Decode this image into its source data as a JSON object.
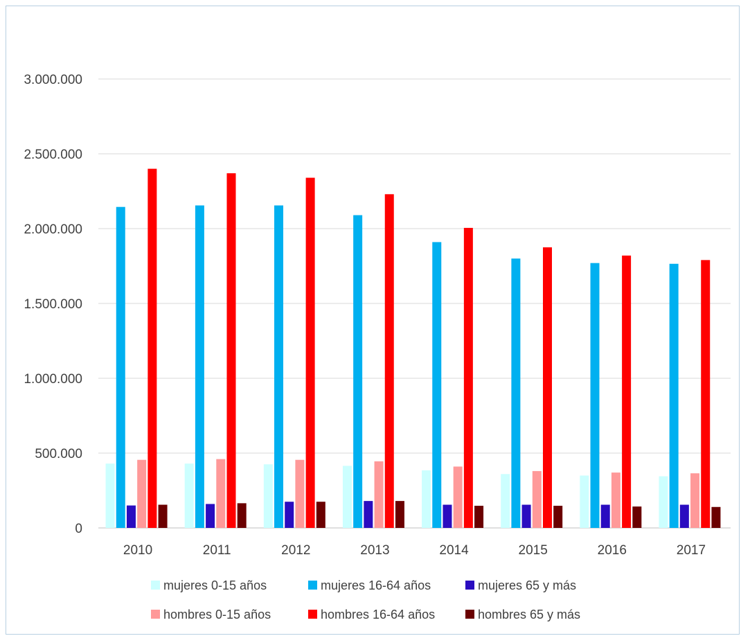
{
  "chart_data": {
    "type": "bar",
    "title": "",
    "xlabel": "",
    "ylabel": "",
    "categories": [
      "2010",
      "2011",
      "2012",
      "2013",
      "2014",
      "2015",
      "2016",
      "2017"
    ],
    "ylim": [
      0,
      3000000
    ],
    "yticks": [
      0,
      500000,
      1000000,
      1500000,
      2000000,
      2500000,
      3000000
    ],
    "ytick_labels": [
      "0",
      "500.000",
      "1.000.000",
      "1.500.000",
      "2.000.000",
      "2.500.000",
      "3.000.000"
    ],
    "grid": true,
    "legend_position": "bottom",
    "series": [
      {
        "name": "mujeres 0-15 años",
        "color": "#ccffff",
        "values": [
          430000,
          430000,
          425000,
          415000,
          385000,
          360000,
          350000,
          345000
        ]
      },
      {
        "name": "mujeres 16-64 años",
        "color": "#00b0f0",
        "values": [
          2145000,
          2155000,
          2155000,
          2090000,
          1910000,
          1800000,
          1770000,
          1765000
        ]
      },
      {
        "name": "mujeres 65 y más",
        "color": "#2a0cc0",
        "values": [
          150000,
          160000,
          175000,
          180000,
          155000,
          155000,
          155000,
          155000
        ]
      },
      {
        "name": "hombres 0-15 años",
        "color": "#ff9999",
        "values": [
          455000,
          460000,
          455000,
          445000,
          410000,
          380000,
          370000,
          365000
        ]
      },
      {
        "name": "hombres 16-64 años",
        "color": "#ff0000",
        "values": [
          2400000,
          2370000,
          2340000,
          2230000,
          2005000,
          1875000,
          1820000,
          1790000
        ]
      },
      {
        "name": "hombres 65 y más",
        "color": "#6b0000",
        "values": [
          155000,
          165000,
          175000,
          180000,
          148000,
          148000,
          143000,
          140000
        ]
      }
    ]
  }
}
